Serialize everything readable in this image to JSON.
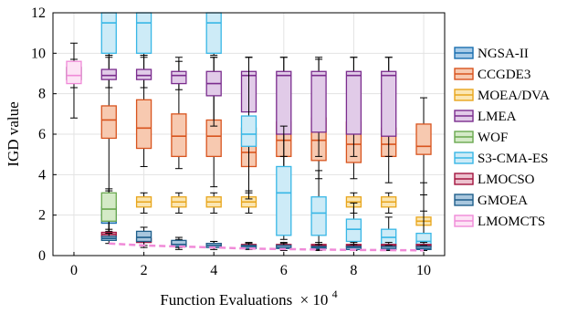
{
  "chart_data": {
    "type": "box",
    "xlabel": "Function Evaluations",
    "xlabel_suffix": "× 10",
    "xlabel_exponent": "4",
    "ylabel": "IGD value",
    "xlim": [
      -0.6,
      10.6
    ],
    "ylim": [
      0,
      12
    ],
    "xticks": [
      0,
      2,
      4,
      6,
      8,
      10
    ],
    "yticks": [
      0,
      2,
      4,
      6,
      8,
      10,
      12
    ],
    "grid": true,
    "legend_position": "right",
    "series": [
      {
        "name": "NGSA-II",
        "color": "#1a6fb0",
        "fill": "#a9cce8",
        "boxes": [
          {
            "x": 1,
            "min": 1.0,
            "q1": 1.6,
            "med": 2.0,
            "q3": 2.4,
            "max": 3.2
          }
        ]
      },
      {
        "name": "CCGDE3",
        "color": "#d8541e",
        "fill": "#f7c9b0",
        "boxes": [
          {
            "x": 1,
            "min": 1.2,
            "q1": 5.8,
            "med": 6.7,
            "q3": 7.4,
            "max": 9.9
          },
          {
            "x": 2,
            "min": 4.4,
            "q1": 5.3,
            "med": 6.3,
            "q3": 7.7,
            "max": 9.9
          },
          {
            "x": 3,
            "min": 4.3,
            "q1": 4.9,
            "med": 5.9,
            "q3": 7.0,
            "max": 9.6
          },
          {
            "x": 4,
            "min": 3.4,
            "q1": 4.9,
            "med": 5.9,
            "q3": 6.7,
            "max": 9.8
          },
          {
            "x": 5,
            "min": 3.2,
            "q1": 4.4,
            "med": 5.1,
            "q3": 6.3,
            "max": 9.8
          },
          {
            "x": 6,
            "min": 3.3,
            "q1": 4.9,
            "med": 5.7,
            "q3": 6.6,
            "max": 9.8
          },
          {
            "x": 7,
            "min": 3.8,
            "q1": 4.7,
            "med": 5.7,
            "q3": 6.8,
            "max": 9.7
          },
          {
            "x": 8,
            "min": 3.8,
            "q1": 4.6,
            "med": 5.5,
            "q3": 6.6,
            "max": 9.8
          },
          {
            "x": 9,
            "min": 3.6,
            "q1": 4.9,
            "med": 5.5,
            "q3": 6.3,
            "max": 9.8
          },
          {
            "x": 10,
            "min": 3.0,
            "q1": 5.0,
            "med": 5.4,
            "q3": 6.5,
            "max": 7.8
          }
        ]
      },
      {
        "name": "MOEA/DVA",
        "color": "#e8a61d",
        "fill": "#fbe6b2",
        "boxes": [
          {
            "x": 2,
            "min": 2.1,
            "q1": 2.4,
            "med": 2.65,
            "q3": 2.9,
            "max": 3.1
          },
          {
            "x": 3,
            "min": 2.1,
            "q1": 2.4,
            "med": 2.65,
            "q3": 2.9,
            "max": 3.1
          },
          {
            "x": 4,
            "min": 2.1,
            "q1": 2.4,
            "med": 2.65,
            "q3": 2.9,
            "max": 3.1
          },
          {
            "x": 5,
            "min": 2.1,
            "q1": 2.4,
            "med": 2.65,
            "q3": 2.9,
            "max": 3.1
          },
          {
            "x": 8,
            "min": 2.1,
            "q1": 2.4,
            "med": 2.65,
            "q3": 2.9,
            "max": 3.1
          },
          {
            "x": 9,
            "min": 2.1,
            "q1": 2.4,
            "med": 2.65,
            "q3": 2.9,
            "max": 3.1
          },
          {
            "x": 10,
            "min": 1.0,
            "q1": 1.5,
            "med": 1.7,
            "q3": 1.9,
            "max": 2.2
          }
        ]
      },
      {
        "name": "LMEA",
        "color": "#7b2d8e",
        "fill": "#e1cbe8",
        "boxes": [
          {
            "x": 1,
            "min": 8.3,
            "q1": 8.7,
            "med": 8.9,
            "q3": 9.2,
            "max": 9.8
          },
          {
            "x": 2,
            "min": 8.3,
            "q1": 8.7,
            "med": 8.9,
            "q3": 9.2,
            "max": 9.8
          },
          {
            "x": 3,
            "min": 8.2,
            "q1": 8.5,
            "med": 8.9,
            "q3": 9.1,
            "max": 9.8
          },
          {
            "x": 4,
            "min": 6.4,
            "q1": 7.9,
            "med": 8.5,
            "q3": 9.1,
            "max": 9.8
          },
          {
            "x": 5,
            "min": 5.8,
            "q1": 7.1,
            "med": 8.9,
            "q3": 9.1,
            "max": 9.8
          },
          {
            "x": 6,
            "min": 4.9,
            "q1": 6.0,
            "med": 8.9,
            "q3": 9.1,
            "max": 9.8
          },
          {
            "x": 7,
            "min": 4.9,
            "q1": 6.1,
            "med": 8.9,
            "q3": 9.1,
            "max": 9.8
          },
          {
            "x": 8,
            "min": 4.9,
            "q1": 6.0,
            "med": 8.9,
            "q3": 9.1,
            "max": 9.8
          },
          {
            "x": 9,
            "min": 4.9,
            "q1": 5.9,
            "med": 8.9,
            "q3": 9.1,
            "max": 9.8
          }
        ]
      },
      {
        "name": "WOF",
        "color": "#6aa84f",
        "fill": "#d4eac7",
        "boxes": [
          {
            "x": 1,
            "min": 1.0,
            "q1": 1.7,
            "med": 2.3,
            "q3": 3.1,
            "max": 3.3
          }
        ]
      },
      {
        "name": "S3-CMA-ES",
        "color": "#38b7e6",
        "fill": "#cdebf7",
        "boxes": [
          {
            "x": 1,
            "min": 9.9,
            "q1": 10.0,
            "med": 11.5,
            "q3": 12.0,
            "max": 12.0
          },
          {
            "x": 2,
            "min": 9.9,
            "q1": 10.0,
            "med": 11.5,
            "q3": 12.0,
            "max": 12.0
          },
          {
            "x": 4,
            "min": 9.9,
            "q1": 10.0,
            "med": 11.5,
            "q3": 12.0,
            "max": 12.0
          },
          {
            "x": 5,
            "min": 2.8,
            "q1": 5.4,
            "med": 6.0,
            "q3": 6.9,
            "max": 9.8
          },
          {
            "x": 6,
            "min": 0.8,
            "q1": 1.0,
            "med": 3.1,
            "q3": 4.4,
            "max": 6.4
          },
          {
            "x": 7,
            "min": 0.3,
            "q1": 1.0,
            "med": 2.1,
            "q3": 2.9,
            "max": 4.2
          },
          {
            "x": 8,
            "min": 0.3,
            "q1": 0.7,
            "med": 1.3,
            "q3": 1.8,
            "max": 2.6
          },
          {
            "x": 9,
            "min": 0.3,
            "q1": 0.5,
            "med": 0.9,
            "q3": 1.3,
            "max": 1.9
          },
          {
            "x": 10,
            "min": 0.3,
            "q1": 0.5,
            "med": 0.7,
            "q3": 1.1,
            "max": 3.6
          }
        ]
      },
      {
        "name": "LMOCSO",
        "color": "#a3153f",
        "fill": "#edc2cf",
        "boxes": [
          {
            "x": 1,
            "min": 0.8,
            "q1": 0.95,
            "med": 1.05,
            "q3": 1.15,
            "max": 1.3
          },
          {
            "x": 2,
            "min": 0.5,
            "q1": 0.65,
            "med": 0.75,
            "q3": 0.85,
            "max": 1.0
          },
          {
            "x": 3,
            "min": 0.4,
            "q1": 0.55,
            "med": 0.65,
            "q3": 0.7,
            "max": 0.8
          },
          {
            "x": 4,
            "min": 0.4,
            "q1": 0.5,
            "med": 0.55,
            "q3": 0.6,
            "max": 0.7
          },
          {
            "x": 5,
            "min": 0.35,
            "q1": 0.45,
            "med": 0.5,
            "q3": 0.55,
            "max": 0.65
          },
          {
            "x": 6,
            "min": 0.35,
            "q1": 0.45,
            "med": 0.5,
            "q3": 0.55,
            "max": 0.65
          },
          {
            "x": 7,
            "min": 0.35,
            "q1": 0.45,
            "med": 0.5,
            "q3": 0.55,
            "max": 0.65
          },
          {
            "x": 8,
            "min": 0.35,
            "q1": 0.45,
            "med": 0.5,
            "q3": 0.55,
            "max": 0.65
          },
          {
            "x": 9,
            "min": 0.35,
            "q1": 0.45,
            "med": 0.5,
            "q3": 0.55,
            "max": 0.65
          },
          {
            "x": 10,
            "min": 0.35,
            "q1": 0.45,
            "med": 0.5,
            "q3": 0.55,
            "max": 0.65
          }
        ]
      },
      {
        "name": "GMOEA",
        "color": "#1f5f8b",
        "fill": "#a9c7de",
        "boxes": [
          {
            "x": 1,
            "min": 0.6,
            "q1": 0.75,
            "med": 0.85,
            "q3": 0.95,
            "max": 1.1
          },
          {
            "x": 2,
            "min": 0.4,
            "q1": 0.7,
            "med": 0.9,
            "q3": 1.2,
            "max": 1.4
          },
          {
            "x": 3,
            "min": 0.3,
            "q1": 0.45,
            "med": 0.55,
            "q3": 0.75,
            "max": 0.9
          },
          {
            "x": 4,
            "min": 0.3,
            "q1": 0.4,
            "med": 0.5,
            "q3": 0.6,
            "max": 0.7
          },
          {
            "x": 5,
            "min": 0.3,
            "q1": 0.35,
            "med": 0.45,
            "q3": 0.5,
            "max": 0.6
          },
          {
            "x": 6,
            "min": 0.25,
            "q1": 0.35,
            "med": 0.4,
            "q3": 0.5,
            "max": 0.6
          },
          {
            "x": 7,
            "min": 0.25,
            "q1": 0.35,
            "med": 0.4,
            "q3": 0.45,
            "max": 0.55
          },
          {
            "x": 8,
            "min": 0.25,
            "q1": 0.3,
            "med": 0.4,
            "q3": 0.45,
            "max": 0.55
          },
          {
            "x": 9,
            "min": 0.25,
            "q1": 0.3,
            "med": 0.35,
            "q3": 0.45,
            "max": 0.5
          },
          {
            "x": 10,
            "min": 0.25,
            "q1": 0.3,
            "med": 0.35,
            "q3": 0.45,
            "max": 0.5
          }
        ]
      },
      {
        "name": "LMOMCTS",
        "color": "#f08ad8",
        "fill": "#fde3f5",
        "boxes": [
          {
            "x": 0,
            "min": 8.3,
            "q1": 8.5,
            "med": 8.9,
            "q3": 9.6,
            "max": 9.7
          }
        ],
        "line": {
          "x": [
            1,
            2,
            3,
            4,
            5,
            6,
            7,
            8,
            9,
            10
          ],
          "y": [
            0.6,
            0.5,
            0.45,
            0.4,
            0.35,
            0.32,
            0.3,
            0.28,
            0.27,
            0.26
          ]
        }
      }
    ],
    "extra_box": {
      "x": 0,
      "min": 6.8,
      "q1": 8.7,
      "med": 9.0,
      "q3": 9.3,
      "max": 10.5,
      "color": "#000000"
    }
  }
}
